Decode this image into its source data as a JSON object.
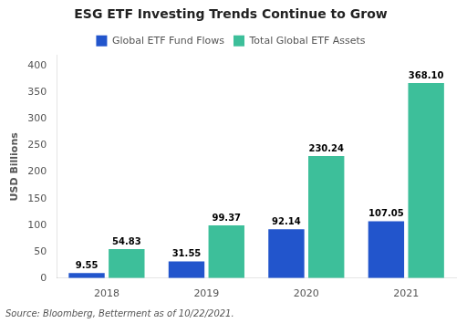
{
  "chart_data": {
    "type": "bar",
    "title": "ESG ETF Investing Trends Continue to Grow",
    "categories": [
      "2018",
      "2019",
      "2020",
      "2021"
    ],
    "series": [
      {
        "name": "Global ETF Fund Flows",
        "color": "#2255cc",
        "values": [
          9.55,
          31.55,
          92.14,
          107.05
        ],
        "value_labels": [
          "9.55",
          "31.55",
          "92.14",
          "107.05"
        ]
      },
      {
        "name": "Total Global ETF Assets",
        "color": "#3dbf9a",
        "values": [
          54.83,
          99.37,
          230.24,
          368.1
        ],
        "value_labels": [
          "54.83",
          "99.37",
          "230.24",
          "368.10"
        ]
      }
    ],
    "ylabel": "USD Billions",
    "ylim": [
      0,
      420
    ],
    "yticks": [
      0,
      50,
      100,
      150,
      200,
      250,
      300,
      350,
      400
    ],
    "grid": false,
    "legend": "top",
    "data_labels": true,
    "annotations": [
      "Source: Bloomberg, Betterment as of 10/22/2021."
    ]
  }
}
